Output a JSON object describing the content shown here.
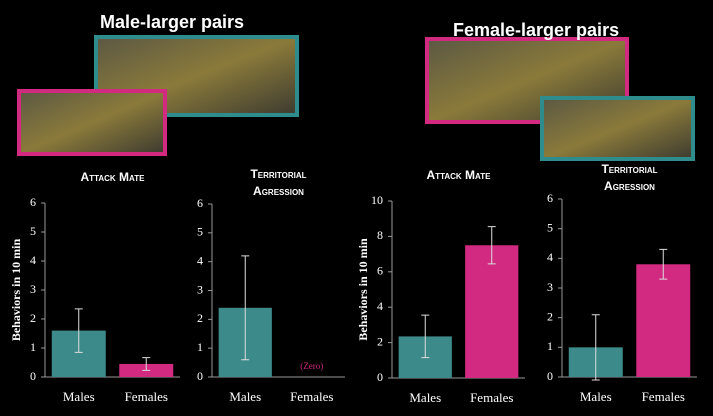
{
  "headings": [
    "Male-larger pairs",
    "Female-larger pairs"
  ],
  "chart_data": [
    {
      "type": "bar",
      "title": "Attack Mate",
      "ylabel": "Behaviors in 10 min",
      "categories": [
        "Males",
        "Females"
      ],
      "values": [
        1.6,
        0.45
      ],
      "errors": [
        0.75,
        0.22
      ],
      "colors": [
        "#3d8a8a",
        "#d12a80"
      ],
      "ylim": [
        0,
        6
      ],
      "yticks": [
        0,
        1,
        2,
        3,
        4,
        5,
        6
      ]
    },
    {
      "type": "bar",
      "title": "Territorial Agression",
      "categories": [
        "Males",
        "Females"
      ],
      "values": [
        2.4,
        0
      ],
      "errors": [
        1.8,
        null
      ],
      "colors": [
        "#3d8a8a",
        "#d12a80"
      ],
      "ylim": [
        0,
        6
      ],
      "yticks": [
        0,
        1,
        2,
        3,
        4,
        5,
        6
      ],
      "annotation": "(Zero)"
    },
    {
      "type": "bar",
      "title": "Attack Mate",
      "ylabel": "Behaviors in 10 min",
      "categories": [
        "Males",
        "Females"
      ],
      "values": [
        2.35,
        7.5
      ],
      "errors": [
        1.2,
        1.05
      ],
      "colors": [
        "#3d8a8a",
        "#d12a80"
      ],
      "ylim": [
        0,
        10
      ],
      "yticks": [
        0,
        2,
        4,
        6,
        8,
        10
      ]
    },
    {
      "type": "bar",
      "title": "Territorial Agression",
      "categories": [
        "Males",
        "Females"
      ],
      "values": [
        1.0,
        3.8
      ],
      "errors": [
        1.1,
        0.5
      ],
      "colors": [
        "#3d8a8a",
        "#d12a80"
      ],
      "ylim": [
        0,
        6
      ],
      "yticks": [
        0,
        1,
        2,
        3,
        4,
        5,
        6
      ]
    }
  ]
}
